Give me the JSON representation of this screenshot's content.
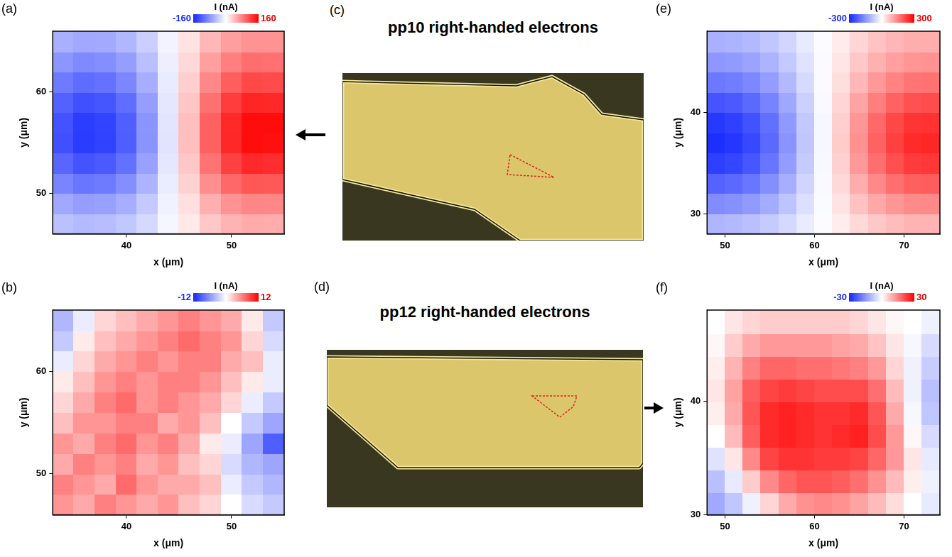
{
  "chart_data": [
    {
      "panel": "(a)",
      "type": "heatmap",
      "x_label": "x (μm)",
      "y_label": "y (μm)",
      "xlim": [
        33,
        55
      ],
      "ylim": [
        46,
        66
      ],
      "xticks": [
        40,
        50
      ],
      "yticks": [
        50,
        60
      ],
      "grid": false,
      "x": [
        34,
        36,
        38,
        40,
        42,
        44,
        46,
        48,
        50,
        52,
        54
      ],
      "y": [
        47,
        49,
        51,
        53,
        55,
        57,
        59,
        61,
        63,
        65
      ],
      "cells": [
        [
          -46,
          -51,
          -49,
          -42,
          -28,
          -7,
          14,
          35,
          47,
          53,
          52
        ],
        [
          -65,
          -72,
          -70,
          -60,
          -40,
          -10,
          20,
          50,
          68,
          76,
          75
        ],
        [
          -91,
          -102,
          -98,
          -84,
          -56,
          -14,
          28,
          70,
          95,
          106,
          105
        ],
        [
          -114,
          -128,
          -123,
          -106,
          -70,
          -18,
          35,
          88,
          119,
          134,
          132
        ],
        [
          -130,
          -145,
          -140,
          -120,
          -80,
          -20,
          40,
          100,
          135,
          152,
          150
        ],
        [
          -128,
          -144,
          -139,
          -119,
          -79,
          -19,
          40,
          99,
          134,
          152,
          152
        ],
        [
          -117,
          -130,
          -126,
          -108,
          -72,
          -18,
          36,
          90,
          122,
          137,
          135
        ],
        [
          -98,
          -109,
          -105,
          -90,
          -60,
          -15,
          30,
          75,
          101,
          114,
          113
        ],
        [
          -78,
          -87,
          -84,
          -72,
          -48,
          -12,
          24,
          60,
          81,
          91,
          90
        ],
        [
          -59,
          -65,
          -63,
          -54,
          -36,
          -9,
          18,
          45,
          61,
          68,
          68
        ]
      ],
      "colorbar": {
        "title": "I (nA)",
        "range": [
          -160,
          160
        ],
        "ticks": [
          -160,
          160
        ]
      }
    },
    {
      "panel": "(b)",
      "type": "heatmap",
      "x_label": "x (μm)",
      "y_label": "y (μm)",
      "xlim": [
        33,
        55
      ],
      "ylim": [
        46,
        66
      ],
      "xticks": [
        40,
        50
      ],
      "yticks": [
        50,
        60
      ],
      "grid": false,
      "x": [
        34,
        36,
        38,
        40,
        42,
        44,
        46,
        48,
        50,
        52,
        54
      ],
      "y": [
        47,
        49,
        51,
        53,
        55,
        57,
        59,
        61,
        63,
        65
      ],
      "cells": [
        [
          5,
          4,
          6,
          5,
          4,
          5,
          3,
          2,
          0,
          -2,
          -3
        ],
        [
          6,
          5,
          4,
          7,
          5,
          4,
          4,
          3,
          -1,
          -3,
          -4
        ],
        [
          4,
          6,
          5,
          6,
          4,
          5,
          3,
          2,
          -2,
          -4,
          -5
        ],
        [
          5,
          4,
          6,
          7,
          5,
          6,
          4,
          1,
          -1,
          -5,
          -9
        ],
        [
          3,
          5,
          5,
          6,
          6,
          4,
          5,
          3,
          0,
          -3,
          -5
        ],
        [
          2,
          4,
          6,
          7,
          5,
          6,
          5,
          4,
          2,
          -1,
          -3
        ],
        [
          1,
          3,
          5,
          6,
          5,
          6,
          6,
          5,
          3,
          1,
          -1
        ],
        [
          -1,
          2,
          4,
          5,
          6,
          5,
          6,
          6,
          4,
          3,
          -1
        ],
        [
          -3,
          1,
          3,
          4,
          5,
          6,
          7,
          6,
          5,
          2,
          -2
        ],
        [
          -4,
          -1,
          2,
          3,
          4,
          5,
          6,
          5,
          4,
          1,
          -3
        ]
      ],
      "colorbar": {
        "title": "I (nA)",
        "range": [
          -12,
          12
        ],
        "ticks": [
          -12,
          12
        ]
      }
    },
    {
      "panel": "(e)",
      "type": "heatmap",
      "x_label": "x (μm)",
      "y_label": "y (μm)",
      "xlim": [
        48,
        74
      ],
      "ylim": [
        28,
        48
      ],
      "xticks": [
        50,
        60,
        70
      ],
      "yticks": [
        30,
        40
      ],
      "grid": false,
      "x": [
        49,
        51,
        53,
        55,
        57,
        59,
        61,
        63,
        65,
        67,
        69,
        71,
        73
      ],
      "y": [
        29,
        31,
        33,
        35,
        37,
        39,
        41,
        43,
        45,
        47
      ],
      "cells": [
        [
          -102,
          -98,
          -89,
          -74,
          -53,
          -28,
          -4,
          21,
          46,
          65,
          79,
          88,
          89
        ],
        [
          -160,
          -154,
          -140,
          -116,
          -83,
          -44,
          -6,
          33,
          72,
          102,
          124,
          138,
          140
        ],
        [
          -218,
          -210,
          -191,
          -158,
          -113,
          -60,
          -8,
          45,
          98,
          139,
          169,
          188,
          191
        ],
        [
          -267,
          -258,
          -235,
          -193,
          -138,
          -74,
          -9,
          55,
          120,
          170,
          207,
          230,
          235
        ],
        [
          -290,
          -280,
          -255,
          -210,
          -150,
          -80,
          -10,
          60,
          130,
          185,
          225,
          250,
          255
        ],
        [
          -276,
          -266,
          -242,
          -200,
          -143,
          -76,
          -10,
          57,
          124,
          176,
          214,
          238,
          242
        ],
        [
          -238,
          -230,
          -209,
          -172,
          -123,
          -66,
          -8,
          49,
          107,
          152,
          185,
          205,
          209
        ],
        [
          -189,
          -182,
          -166,
          -137,
          -98,
          -52,
          -7,
          39,
          85,
          120,
          146,
          163,
          166
        ],
        [
          -145,
          -140,
          -128,
          -105,
          -75,
          -40,
          -5,
          30,
          65,
          93,
          113,
          125,
          128
        ],
        [
          -110,
          -106,
          -97,
          -80,
          -57,
          -30,
          -4,
          23,
          49,
          70,
          86,
          95,
          97
        ]
      ],
      "colorbar": {
        "title": "I (nA)",
        "range": [
          -300,
          300
        ],
        "ticks": [
          -300,
          300
        ]
      }
    },
    {
      "panel": "(f)",
      "type": "heatmap",
      "x_label": "x (μm)",
      "y_label": "y (μm)",
      "xlim": [
        48,
        74
      ],
      "ylim": [
        30,
        48
      ],
      "xticks": [
        50,
        60,
        70
      ],
      "yticks": [
        30,
        40
      ],
      "grid": false,
      "x": [
        49,
        51,
        53,
        55,
        57,
        59,
        61,
        63,
        65,
        67,
        69,
        71,
        73
      ],
      "y": [
        31,
        33,
        35,
        37,
        39,
        41,
        43,
        45,
        47
      ],
      "cells": [
        [
          -12,
          -8,
          -2,
          5,
          10,
          13,
          14,
          13,
          11,
          8,
          4,
          0,
          -3
        ],
        [
          -9,
          -3,
          6,
          14,
          18,
          20,
          20,
          19,
          17,
          13,
          8,
          2,
          -2
        ],
        [
          -4,
          3,
          14,
          22,
          24,
          24,
          23,
          23,
          22,
          18,
          12,
          3,
          -3
        ],
        [
          0,
          8,
          19,
          25,
          26,
          25,
          24,
          25,
          26,
          21,
          12,
          1,
          -5
        ],
        [
          2,
          10,
          20,
          25,
          26,
          25,
          24,
          24,
          25,
          20,
          10,
          -1,
          -8
        ],
        [
          3,
          11,
          19,
          22,
          23,
          22,
          21,
          21,
          21,
          17,
          8,
          -2,
          -9
        ],
        [
          2,
          9,
          15,
          18,
          18,
          17,
          17,
          16,
          15,
          12,
          5,
          -2,
          -7
        ],
        [
          1,
          6,
          10,
          12,
          12,
          12,
          12,
          11,
          10,
          7,
          3,
          -1,
          -5
        ],
        [
          0,
          3,
          5,
          6,
          6,
          6,
          6,
          6,
          5,
          3,
          1,
          0,
          -2
        ]
      ],
      "colorbar": {
        "title": "I (nA)",
        "range": [
          -30,
          30
        ],
        "ticks": [
          -30,
          30
        ]
      }
    }
  ],
  "micrographs": [
    {
      "panel": "(c)",
      "title": "pp10 right-handed electrons"
    },
    {
      "panel": "(d)",
      "title": "pp12 right-handed electrons"
    }
  ]
}
